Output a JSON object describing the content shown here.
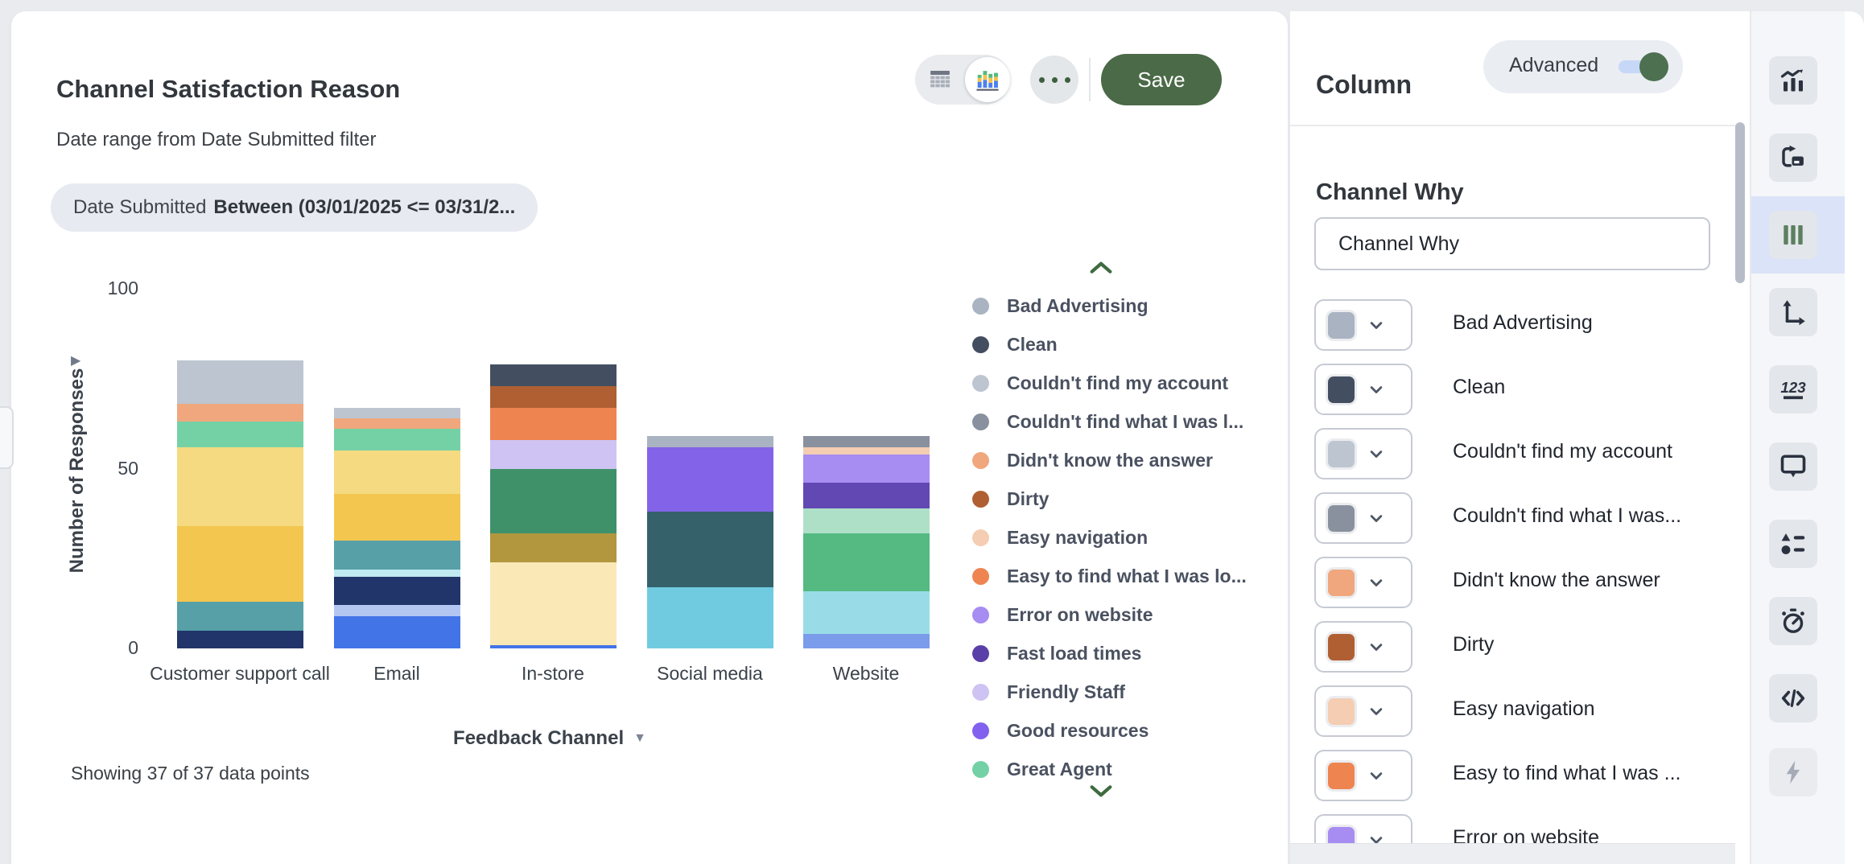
{
  "colors": {
    "accent_green": "#4b6a47",
    "toggle_knob_green": "#4c7050",
    "selected_tool_highlight": "#dbe3f8",
    "chip_background": "#e7eaf0",
    "page_background": "#e9ebef"
  },
  "header": {
    "title": "Channel Satisfaction Reason",
    "subtitle": "Date range from Date Submitted filter",
    "filter_chip": {
      "field": "Date Submitted",
      "condition": "Between (03/01/2025 <= 03/31/2..."
    },
    "view_toggle": {
      "options": [
        {
          "icon": "table-view-icon",
          "selected": false
        },
        {
          "icon": "chart-view-icon",
          "selected": true
        }
      ]
    },
    "save_label": "Save"
  },
  "chart_data": {
    "type": "stacked-bar",
    "title": "Channel Satisfaction Reason",
    "xlabel": "Feedback Channel",
    "ylabel": "Number of Responses",
    "ylim": [
      0,
      100
    ],
    "yticks": [
      0,
      50,
      100
    ],
    "grid": false,
    "legend_position": "right",
    "legend_scrollable": true,
    "footnote": "Showing 37 of 37 data points",
    "categories": [
      "Customer support call",
      "Email",
      "In-store",
      "Social media",
      "Website"
    ],
    "series_legend": [
      {
        "name": "Bad Advertising",
        "color": "#a9b3c2"
      },
      {
        "name": "Clean",
        "color": "#434e60"
      },
      {
        "name": "Couldn't find my account",
        "color": "#bdc5d1"
      },
      {
        "name": "Couldn't find what I was l...",
        "color": "#89919f"
      },
      {
        "name": "Didn't know the answer",
        "color": "#f0a77d"
      },
      {
        "name": "Dirty",
        "color": "#b05f33"
      },
      {
        "name": "Easy navigation",
        "color": "#f5cdb2"
      },
      {
        "name": "Easy to find what I was lo...",
        "color": "#ee8450"
      },
      {
        "name": "Error on website",
        "color": "#a78cf2"
      },
      {
        "name": "Fast load times",
        "color": "#5b3fa8"
      },
      {
        "name": "Friendly Staff",
        "color": "#cec3f2"
      },
      {
        "name": "Good resources",
        "color": "#8161ee"
      },
      {
        "name": "Great Agent",
        "color": "#74d1a6"
      }
    ],
    "bars": [
      {
        "category": "Customer support call",
        "total": 80,
        "segments": [
          {
            "series": null,
            "color": "#21356b",
            "value": 5
          },
          {
            "series": null,
            "color": "#57a0a8",
            "value": 8
          },
          {
            "series": null,
            "color": "#f3c64f",
            "value": 21
          },
          {
            "series": null,
            "color": "#f5da81",
            "value": 22
          },
          {
            "series": "Great Agent",
            "color": "#74d1a6",
            "value": 7
          },
          {
            "series": "Didn't know the answer",
            "color": "#f0a77d",
            "value": 5
          },
          {
            "series": "Couldn't find my account",
            "color": "#bdc5d1",
            "value": 12
          }
        ]
      },
      {
        "category": "Email",
        "total": 67,
        "segments": [
          {
            "series": null,
            "color": "#4274e8",
            "value": 9
          },
          {
            "series": null,
            "color": "#b3c6f2",
            "value": 3
          },
          {
            "series": null,
            "color": "#21356b",
            "value": 8
          },
          {
            "series": null,
            "color": "#c0e9f0",
            "value": 2
          },
          {
            "series": null,
            "color": "#57a0a8",
            "value": 8
          },
          {
            "series": null,
            "color": "#f3c64f",
            "value": 13
          },
          {
            "series": null,
            "color": "#f5da81",
            "value": 12
          },
          {
            "series": "Great Agent",
            "color": "#74d1a6",
            "value": 6
          },
          {
            "series": "Didn't know the answer",
            "color": "#f0a77d",
            "value": 3
          },
          {
            "series": "Couldn't find my account",
            "color": "#bdc5d1",
            "value": 3
          }
        ]
      },
      {
        "category": "In-store",
        "total": 79,
        "segments": [
          {
            "series": null,
            "color": "#4274e8",
            "value": 1
          },
          {
            "series": null,
            "color": "#fae8b6",
            "value": 23
          },
          {
            "series": null,
            "color": "#b2973f",
            "value": 8
          },
          {
            "series": null,
            "color": "#3f916a",
            "value": 18
          },
          {
            "series": "Friendly Staff",
            "color": "#cec3f2",
            "value": 8
          },
          {
            "series": "Easy to find what I was lo...",
            "color": "#ee8450",
            "value": 9
          },
          {
            "series": "Dirty",
            "color": "#b05f33",
            "value": 6
          },
          {
            "series": "Clean",
            "color": "#434e60",
            "value": 6
          }
        ]
      },
      {
        "category": "Social media",
        "total": 59,
        "segments": [
          {
            "series": null,
            "color": "#70cbe0",
            "value": 17
          },
          {
            "series": null,
            "color": "#35616b",
            "value": 21
          },
          {
            "series": "Good resources",
            "color": "#8364e8",
            "value": 18
          },
          {
            "series": "Bad Advertising",
            "color": "#a9b3c2",
            "value": 3
          }
        ]
      },
      {
        "category": "Website",
        "total": 59,
        "segments": [
          {
            "series": null,
            "color": "#7b9ceb",
            "value": 4
          },
          {
            "series": null,
            "color": "#99dce8",
            "value": 12
          },
          {
            "series": null,
            "color": "#54ba82",
            "value": 16
          },
          {
            "series": null,
            "color": "#aee0c8",
            "value": 7
          },
          {
            "series": "Fast load times",
            "color": "#6248b3",
            "value": 7
          },
          {
            "series": "Error on website",
            "color": "#a78cf2",
            "value": 8
          },
          {
            "series": "Easy navigation",
            "color": "#f5cdb2",
            "value": 2
          },
          {
            "series": "Couldn't find what I was l...",
            "color": "#89919f",
            "value": 3
          }
        ]
      }
    ]
  },
  "panel": {
    "title": "Column",
    "advanced_label": "Advanced",
    "advanced_on": true,
    "section_title": "Channel Why",
    "field_value": "Channel Why",
    "rows": [
      {
        "label": "Bad Advertising",
        "color": "#a9b3c2"
      },
      {
        "label": "Clean",
        "color": "#434e60"
      },
      {
        "label": "Couldn't find my account",
        "color": "#bdc5d1"
      },
      {
        "label": "Couldn't find what I was...",
        "color": "#89919f"
      },
      {
        "label": "Didn't know the answer",
        "color": "#f0a77d"
      },
      {
        "label": "Dirty",
        "color": "#b05f33"
      },
      {
        "label": "Easy navigation",
        "color": "#f5cdb2"
      },
      {
        "label": "Easy to find what I was ...",
        "color": "#ee8450"
      },
      {
        "label": "Error on website",
        "color": "#a78cf2"
      }
    ]
  },
  "icon_rail": {
    "items": [
      {
        "icon": "combo-chart-icon",
        "selected": false,
        "disabled": false
      },
      {
        "icon": "move-chart-icon",
        "selected": false,
        "disabled": false
      },
      {
        "icon": "columns-icon",
        "selected": true,
        "disabled": false
      },
      {
        "icon": "axes-icon",
        "selected": false,
        "disabled": false
      },
      {
        "icon": "number-format-icon",
        "selected": false,
        "disabled": false
      },
      {
        "icon": "tooltip-icon",
        "selected": false,
        "disabled": false
      },
      {
        "icon": "legend-settings-icon",
        "selected": false,
        "disabled": false
      },
      {
        "icon": "timer-icon",
        "selected": false,
        "disabled": false
      },
      {
        "icon": "code-icon",
        "selected": false,
        "disabled": false
      },
      {
        "icon": "lightning-icon",
        "selected": false,
        "disabled": true
      }
    ]
  }
}
